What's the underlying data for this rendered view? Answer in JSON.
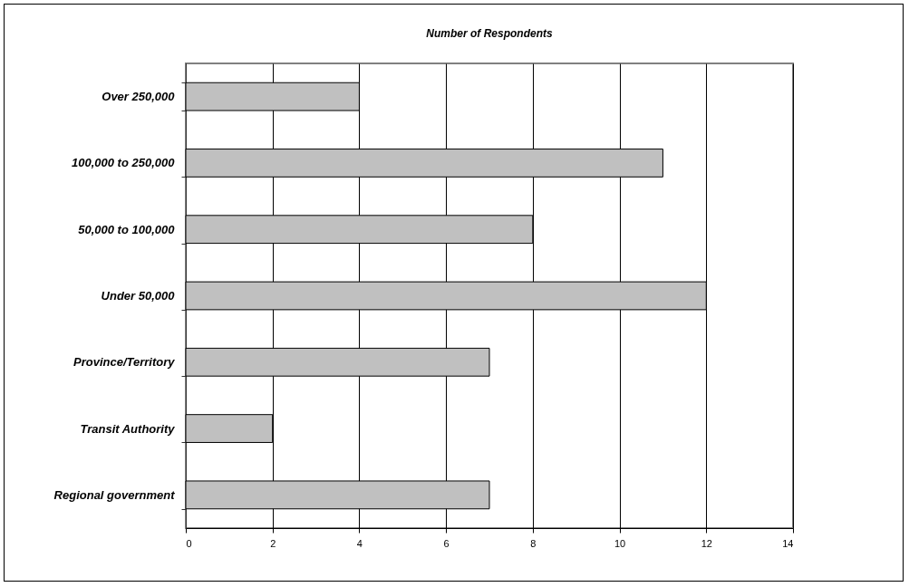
{
  "chart_data": {
    "type": "bar",
    "orientation": "horizontal",
    "title": "Number of Respondents",
    "categories": [
      "Over 250,000",
      "100,000 to 250,000",
      "50,000 to 100,000",
      "Under 50,000",
      "Province/Territory",
      "Transit Authority",
      "Regional government"
    ],
    "values": [
      4,
      11,
      8,
      12,
      7,
      2,
      7
    ],
    "color": "#c0c0c0",
    "xlim": [
      0,
      14
    ],
    "xticks": [
      0,
      2,
      4,
      6,
      8,
      10,
      12,
      14
    ],
    "grid": "x"
  }
}
